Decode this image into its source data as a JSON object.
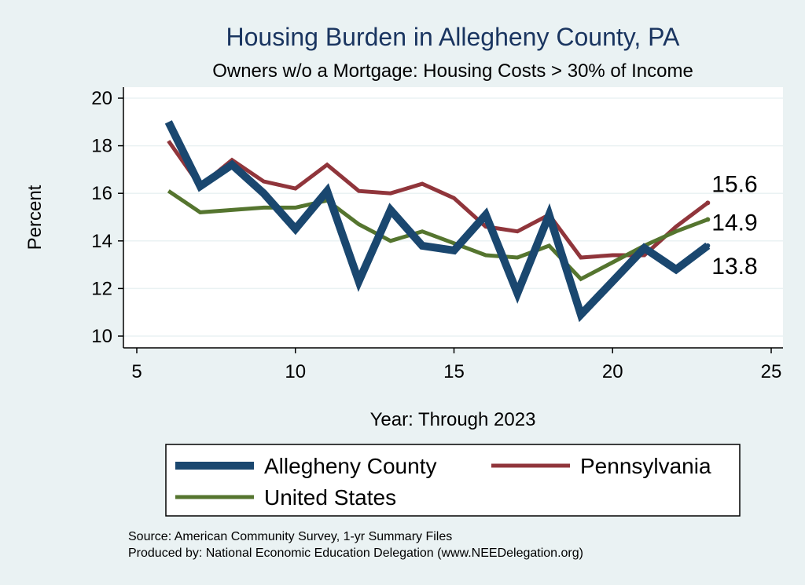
{
  "chart_data": {
    "type": "line",
    "title": "Housing Burden in Allegheny County, PA",
    "subtitle": "Owners w/o a Mortgage: Housing Costs > 30% of Income",
    "xlabel": "Year: Through 2023",
    "ylabel": "Percent",
    "xlim": [
      5,
      25
    ],
    "ylim": [
      10,
      20
    ],
    "x_ticks": [
      5,
      10,
      15,
      20,
      25
    ],
    "y_ticks": [
      10,
      12,
      14,
      16,
      18,
      20
    ],
    "grid": true,
    "legend_position": "bottom",
    "series": [
      {
        "name": "Allegheny County",
        "color": "#1a476f",
        "x": [
          6,
          7,
          8,
          9,
          10,
          11,
          12,
          13,
          14,
          15,
          16,
          17,
          18,
          19,
          20,
          21,
          22,
          23
        ],
        "values": [
          19.0,
          16.3,
          17.2,
          16.0,
          14.5,
          16.1,
          12.3,
          15.3,
          13.8,
          13.6,
          15.1,
          11.8,
          15.1,
          10.9,
          12.3,
          13.7,
          12.8,
          13.8
        ],
        "end_label": "13.8"
      },
      {
        "name": "Pennsylvania",
        "color": "#90353b",
        "x": [
          6,
          7,
          8,
          9,
          10,
          11,
          12,
          13,
          14,
          15,
          16,
          17,
          18,
          19,
          20,
          21,
          22,
          23
        ],
        "values": [
          18.2,
          16.3,
          17.4,
          16.5,
          16.2,
          17.2,
          16.1,
          16.0,
          16.4,
          15.8,
          14.6,
          14.4,
          15.1,
          13.3,
          13.4,
          13.4,
          14.6,
          15.6
        ],
        "end_label": "15.6"
      },
      {
        "name": "United States",
        "color": "#55752f",
        "x": [
          6,
          7,
          8,
          9,
          10,
          11,
          12,
          13,
          14,
          15,
          16,
          17,
          18,
          19,
          20,
          21,
          22,
          23
        ],
        "values": [
          16.1,
          15.2,
          15.3,
          15.4,
          15.4,
          15.7,
          14.7,
          14.0,
          14.4,
          13.9,
          13.4,
          13.3,
          13.8,
          12.4,
          13.1,
          13.8,
          14.4,
          14.9
        ],
        "end_label": "14.9"
      }
    ]
  },
  "notes": {
    "source": "Source: American Community Survey, 1-yr Summary Files",
    "produced_by": "Produced by: National Economic Education Delegation (www.NEEDelegation.org)"
  }
}
